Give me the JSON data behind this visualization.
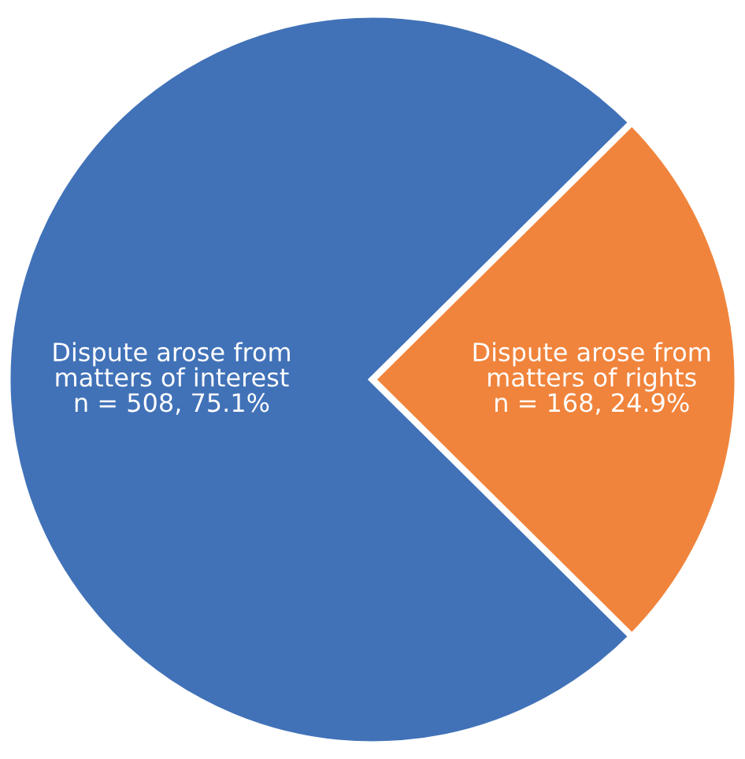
{
  "chart_data": {
    "type": "pie",
    "categories": [
      "Dispute arose from\nmatters of interest",
      "Dispute arose from\nmatters of rights"
    ],
    "values": [
      508,
      168
    ],
    "value_labels": [
      "n = 508, 75.1%",
      "n = 168, 24.9%"
    ],
    "colors": [
      "#4172b8",
      "#f0843c"
    ]
  }
}
